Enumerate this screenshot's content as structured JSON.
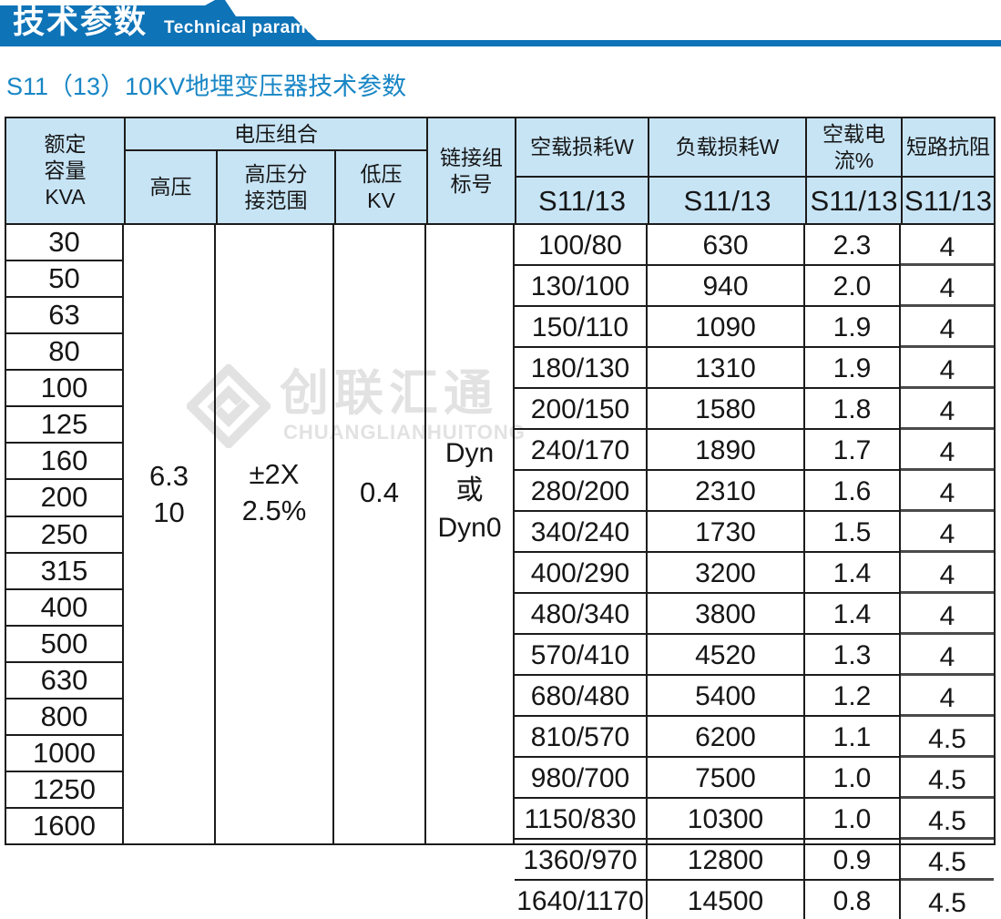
{
  "colors": {
    "banner": "#0e73b7",
    "header_bg": "#c7e4f5",
    "subtitle": "#1886c5",
    "watermark": "#e2e2e2"
  },
  "banner": {
    "title_cn": "技术参数",
    "title_en": "Technical parameter"
  },
  "page_title": "S11（13）10KV地埋变压器技术参数",
  "table": {
    "header": {
      "capacity": "额定\n容量\nKVA",
      "voltage_group": "电压组合",
      "high_voltage": "高压",
      "hv_tap_range": "高压分\n接范围",
      "low_voltage": "低压\nKV",
      "link_group": "链接组\n标号",
      "no_load_loss": "空载损耗W",
      "load_loss": "负载损耗W",
      "no_load_current": "空载电流%",
      "impedance": "短路抗阻",
      "model": "S11/13"
    },
    "merged": {
      "high_voltage": "6.3\n10",
      "hv_tap_range": "±2X\n2.5%",
      "low_voltage": "0.4",
      "link_group": "Dyn\n或\nDyn0"
    },
    "rows": [
      {
        "kva": "30",
        "no_load_loss": "100/80",
        "load_loss": "630",
        "no_load_current": "2.3",
        "impedance": "4"
      },
      {
        "kva": "50",
        "no_load_loss": "130/100",
        "load_loss": "940",
        "no_load_current": "2.0",
        "impedance": "4"
      },
      {
        "kva": "63",
        "no_load_loss": "150/110",
        "load_loss": "1090",
        "no_load_current": "1.9",
        "impedance": "4"
      },
      {
        "kva": "80",
        "no_load_loss": "180/130",
        "load_loss": "1310",
        "no_load_current": "1.9",
        "impedance": "4"
      },
      {
        "kva": "100",
        "no_load_loss": "200/150",
        "load_loss": "1580",
        "no_load_current": "1.8",
        "impedance": "4"
      },
      {
        "kva": "125",
        "no_load_loss": "240/170",
        "load_loss": "1890",
        "no_load_current": "1.7",
        "impedance": "4"
      },
      {
        "kva": "160",
        "no_load_loss": "280/200",
        "load_loss": "2310",
        "no_load_current": "1.6",
        "impedance": "4"
      },
      {
        "kva": "200",
        "no_load_loss": "340/240",
        "load_loss": "1730",
        "no_load_current": "1.5",
        "impedance": "4"
      },
      {
        "kva": "250",
        "no_load_loss": "400/290",
        "load_loss": "3200",
        "no_load_current": "1.4",
        "impedance": "4"
      },
      {
        "kva": "315",
        "no_load_loss": "480/340",
        "load_loss": "3800",
        "no_load_current": "1.4",
        "impedance": "4"
      },
      {
        "kva": "400",
        "no_load_loss": "570/410",
        "load_loss": "4520",
        "no_load_current": "1.3",
        "impedance": "4"
      },
      {
        "kva": "500",
        "no_load_loss": "680/480",
        "load_loss": "5400",
        "no_load_current": "1.2",
        "impedance": "4"
      },
      {
        "kva": "630",
        "no_load_loss": "810/570",
        "load_loss": "6200",
        "no_load_current": "1.1",
        "impedance": "4.5"
      },
      {
        "kva": "800",
        "no_load_loss": "980/700",
        "load_loss": "7500",
        "no_load_current": "1.0",
        "impedance": "4.5"
      },
      {
        "kva": "1000",
        "no_load_loss": "1150/830",
        "load_loss": "10300",
        "no_load_current": "1.0",
        "impedance": "4.5"
      },
      {
        "kva": "1250",
        "no_load_loss": "1360/970",
        "load_loss": "12800",
        "no_load_current": "0.9",
        "impedance": "4.5"
      },
      {
        "kva": "1600",
        "no_load_loss": "1640/1170",
        "load_loss": "14500",
        "no_load_current": "0.8",
        "impedance": "4.5"
      }
    ]
  },
  "watermark": {
    "cn": "创联汇通",
    "en": "CHUANGLIANHUITONG"
  }
}
